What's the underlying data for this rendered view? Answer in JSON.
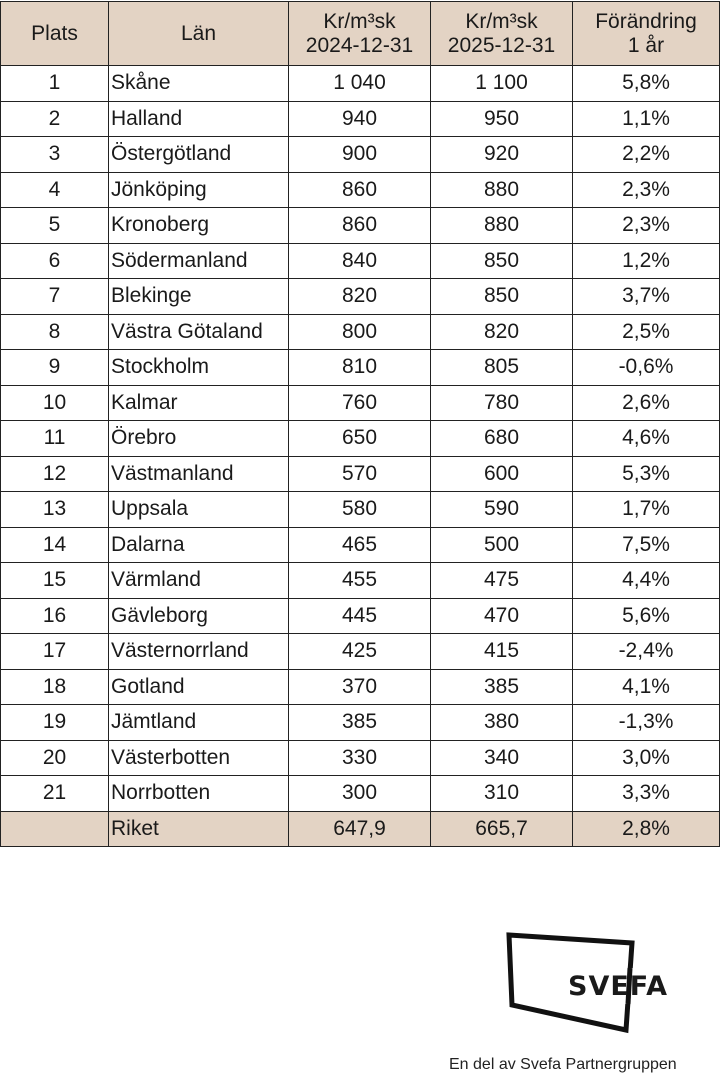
{
  "table": {
    "headers": {
      "plats": "Plats",
      "lan": "Län",
      "col2024_line1": "Kr/m³sk",
      "col2024_line2": "2024-12-31",
      "col2025_line1": "Kr/m³sk",
      "col2025_line2": "2025-12-31",
      "change_line1": "Förändring",
      "change_line2": "1 år"
    },
    "rows": [
      {
        "plats": "1",
        "lan": "Skåne",
        "v2024": "1 040",
        "v2025": "1 100",
        "change": "5,8%"
      },
      {
        "plats": "2",
        "lan": "Halland",
        "v2024": "940",
        "v2025": "950",
        "change": "1,1%"
      },
      {
        "plats": "3",
        "lan": "Östergötland",
        "v2024": "900",
        "v2025": "920",
        "change": "2,2%"
      },
      {
        "plats": "4",
        "lan": "Jönköping",
        "v2024": "860",
        "v2025": "880",
        "change": "2,3%"
      },
      {
        "plats": "5",
        "lan": "Kronoberg",
        "v2024": "860",
        "v2025": "880",
        "change": "2,3%"
      },
      {
        "plats": "6",
        "lan": "Södermanland",
        "v2024": "840",
        "v2025": "850",
        "change": "1,2%"
      },
      {
        "plats": "7",
        "lan": "Blekinge",
        "v2024": "820",
        "v2025": "850",
        "change": "3,7%"
      },
      {
        "plats": "8",
        "lan": "Västra Götaland",
        "v2024": "800",
        "v2025": "820",
        "change": "2,5%"
      },
      {
        "plats": "9",
        "lan": "Stockholm",
        "v2024": "810",
        "v2025": "805",
        "change": "-0,6%"
      },
      {
        "plats": "10",
        "lan": "Kalmar",
        "v2024": "760",
        "v2025": "780",
        "change": "2,6%"
      },
      {
        "plats": "11",
        "lan": "Örebro",
        "v2024": "650",
        "v2025": "680",
        "change": "4,6%"
      },
      {
        "plats": "12",
        "lan": "Västmanland",
        "v2024": "570",
        "v2025": "600",
        "change": "5,3%"
      },
      {
        "plats": "13",
        "lan": "Uppsala",
        "v2024": "580",
        "v2025": "590",
        "change": "1,7%"
      },
      {
        "plats": "14",
        "lan": "Dalarna",
        "v2024": "465",
        "v2025": "500",
        "change": "7,5%"
      },
      {
        "plats": "15",
        "lan": "Värmland",
        "v2024": "455",
        "v2025": "475",
        "change": "4,4%"
      },
      {
        "plats": "16",
        "lan": "Gävleborg",
        "v2024": "445",
        "v2025": "470",
        "change": "5,6%"
      },
      {
        "plats": "17",
        "lan": "Västernorrland",
        "v2024": "425",
        "v2025": "415",
        "change": "-2,4%"
      },
      {
        "plats": "18",
        "lan": "Gotland",
        "v2024": "370",
        "v2025": "385",
        "change": "4,1%"
      },
      {
        "plats": "19",
        "lan": "Jämtland",
        "v2024": "385",
        "v2025": "380",
        "change": "-1,3%"
      },
      {
        "plats": "20",
        "lan": "Västerbotten",
        "v2024": "330",
        "v2025": "340",
        "change": "3,0%"
      },
      {
        "plats": "21",
        "lan": "Norrbotten",
        "v2024": "300",
        "v2025": "310",
        "change": "3,3%"
      }
    ],
    "total": {
      "plats": "",
      "lan": "Riket",
      "v2024": "647,9",
      "v2025": "665,7",
      "change": "2,8%"
    }
  },
  "branding": {
    "logo_text": "SVEFA",
    "tagline": "En del av Svefa Partnergruppen"
  },
  "colors": {
    "header_bg": "#e3d3c4",
    "border": "#222222",
    "text": "#1a1a1a"
  }
}
